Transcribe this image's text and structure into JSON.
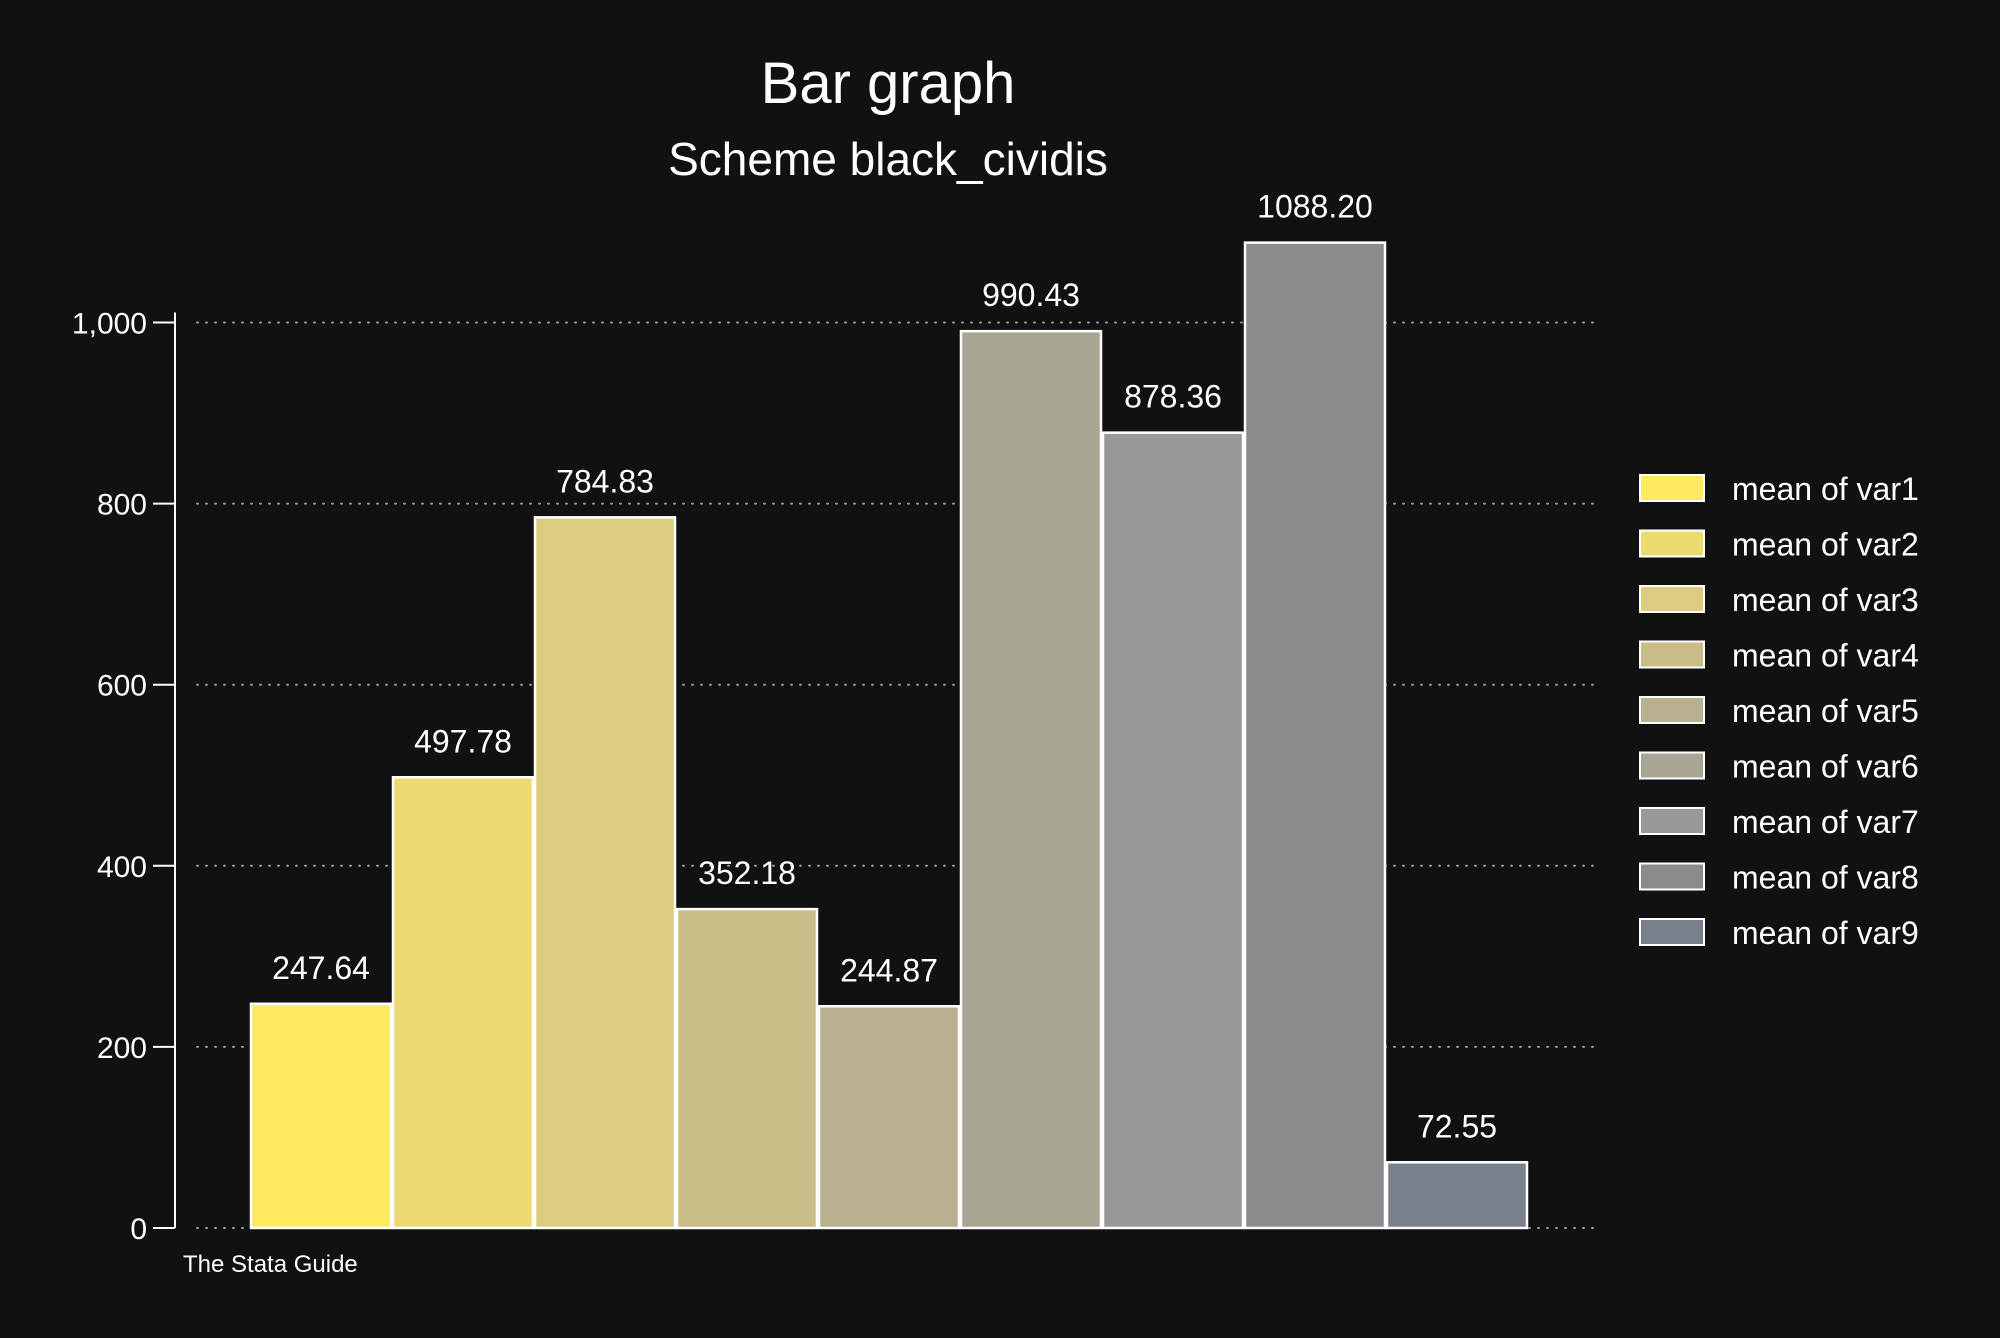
{
  "chart_data": {
    "type": "bar",
    "title": "Bar graph",
    "subtitle": "Scheme black_cividis",
    "note": "The Stata Guide",
    "ylim": [
      0,
      1100
    ],
    "yticks": [
      0,
      200,
      400,
      600,
      800,
      1000
    ],
    "ytick_labels": [
      "0",
      "200",
      "400",
      "600",
      "800",
      "1,000"
    ],
    "grid": true,
    "legend_position": "right",
    "series": [
      {
        "name": "mean of var1",
        "value": 247.64,
        "label": "247.64",
        "color": "#ffea5f"
      },
      {
        "name": "mean of var2",
        "value": 497.78,
        "label": "497.78",
        "color": "#eddb72"
      },
      {
        "name": "mean of var3",
        "value": 784.83,
        "label": "784.83",
        "color": "#dccc7f"
      },
      {
        "name": "mean of var4",
        "value": 352.18,
        "label": "352.18",
        "color": "#cbbd88"
      },
      {
        "name": "mean of var5",
        "value": 244.87,
        "label": "244.87",
        "color": "#b9b090"
      },
      {
        "name": "mean of var6",
        "value": 990.43,
        "label": "990.43",
        "color": "#a8a594"
      },
      {
        "name": "mean of var7",
        "value": 878.36,
        "label": "878.36",
        "color": "#999896"
      },
      {
        "name": "mean of var8",
        "value": 1088.2,
        "label": "1088.20",
        "color": "#8a8b8f"
      },
      {
        "name": "mean of var9",
        "value": 72.55,
        "label": "72.55",
        "color": "#7a7f8c"
      }
    ]
  }
}
